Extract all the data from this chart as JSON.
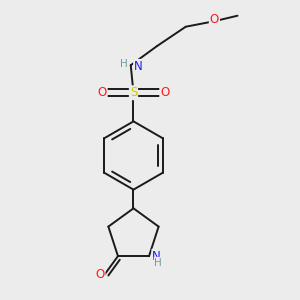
{
  "bg_color": "#ececec",
  "atom_colors": {
    "C": "#000000",
    "N": "#1a1aff",
    "O": "#ff1a1a",
    "S": "#cccc00",
    "H": "#6e9ea0"
  },
  "bond_color": "#1a1a1a",
  "bond_width": 1.4,
  "dbo": 0.055
}
